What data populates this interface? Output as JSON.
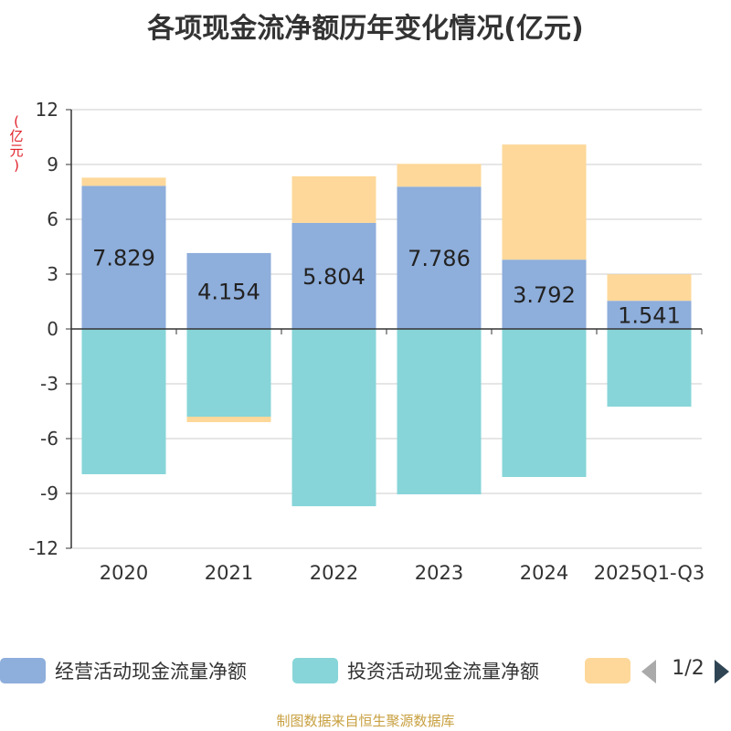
{
  "chart_data": {
    "type": "bar",
    "stacked": true,
    "title": "各项现金流净额历年变化情况(亿元)",
    "unit_label": "(亿元)",
    "categories": [
      "2020",
      "2021",
      "2022",
      "2023",
      "2024",
      "2025Q1-Q3"
    ],
    "ylim": [
      -12,
      12
    ],
    "yticks": [
      12,
      9,
      6,
      3,
      0,
      -3,
      -6,
      -9,
      -12
    ],
    "grid": true,
    "series": [
      {
        "name": "经营活动现金流量净额",
        "color": "#8eaedb",
        "values": [
          7.829,
          4.154,
          5.804,
          7.786,
          3.792,
          1.541
        ],
        "show_labels": true
      },
      {
        "name": "投资活动现金流量净额",
        "color": "#87d5d8",
        "values": [
          -7.95,
          -4.8,
          -9.7,
          -9.05,
          -8.1,
          -4.25
        ],
        "show_labels": false
      },
      {
        "name": "",
        "color": "#fdd89a",
        "values": [
          0.45,
          -0.3,
          2.55,
          1.25,
          6.3,
          1.45
        ],
        "show_labels": false
      }
    ],
    "legend_position": "bottom",
    "legend_page": "1/2"
  },
  "source": "制图数据来自恒生聚源数据库"
}
